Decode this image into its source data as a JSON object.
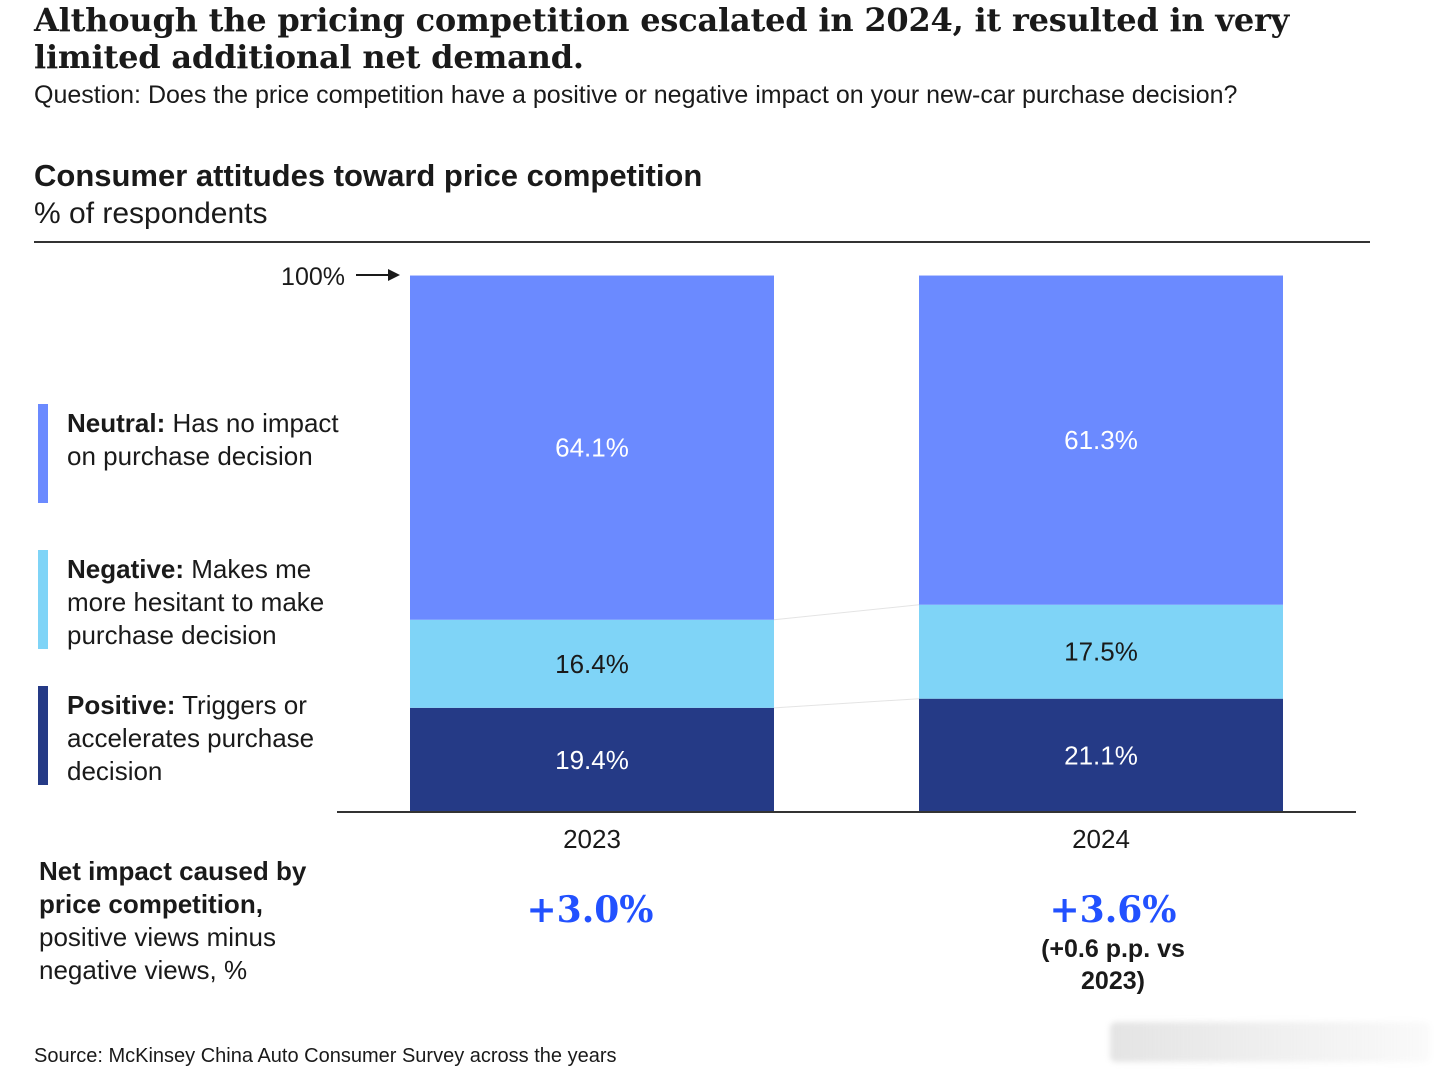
{
  "headline": "Although the pricing competition escalated in 2024, it resulted in very limited additional net demand.",
  "question": "Question: Does the price competition have a positive or negative impact on your new-car purchase decision?",
  "legend": [
    {
      "key": "neutral",
      "bold": "Neutral:",
      "text": " Has no impact on purchase decision",
      "color": "#6b8aff"
    },
    {
      "key": "negative",
      "bold": "Negative:",
      "text": " Makes me more hesitant to make purchase decision",
      "color": "#7fd4f7"
    },
    {
      "key": "positive",
      "bold": "Positive:",
      "text": " Triggers or accelerates purchase decision",
      "color": "#253a86"
    }
  ],
  "net_impact": {
    "bold": "Net impact caused by price competition,",
    "text": " positive views minus negative views, %"
  },
  "source": "Source: McKinsey China Auto Consumer Survey across the years",
  "chart_data": {
    "type": "bar",
    "stacked": true,
    "title": "Consumer attitudes toward price competition",
    "subtitle": "% of respondents",
    "ylim": [
      0,
      100
    ],
    "reference_label": "100%",
    "categories": [
      "2023",
      "2024"
    ],
    "series": [
      {
        "name": "Positive",
        "color": "#253a86",
        "values": [
          19.4,
          21.1
        ],
        "labels": [
          "19.4%",
          "21.1%"
        ]
      },
      {
        "name": "Negative",
        "color": "#7fd4f7",
        "values": [
          16.4,
          17.5
        ],
        "labels": [
          "16.4%",
          "17.5%"
        ]
      },
      {
        "name": "Neutral",
        "color": "#6b8aff",
        "values": [
          64.1,
          61.3
        ],
        "labels": [
          "64.1%",
          "61.3%"
        ]
      }
    ],
    "net_impact": [
      {
        "category": "2023",
        "value": "+3.0%",
        "note": []
      },
      {
        "category": "2024",
        "value": "+3.6%",
        "note": [
          "(+0.6 p.p. vs",
          "2023)"
        ]
      }
    ]
  }
}
